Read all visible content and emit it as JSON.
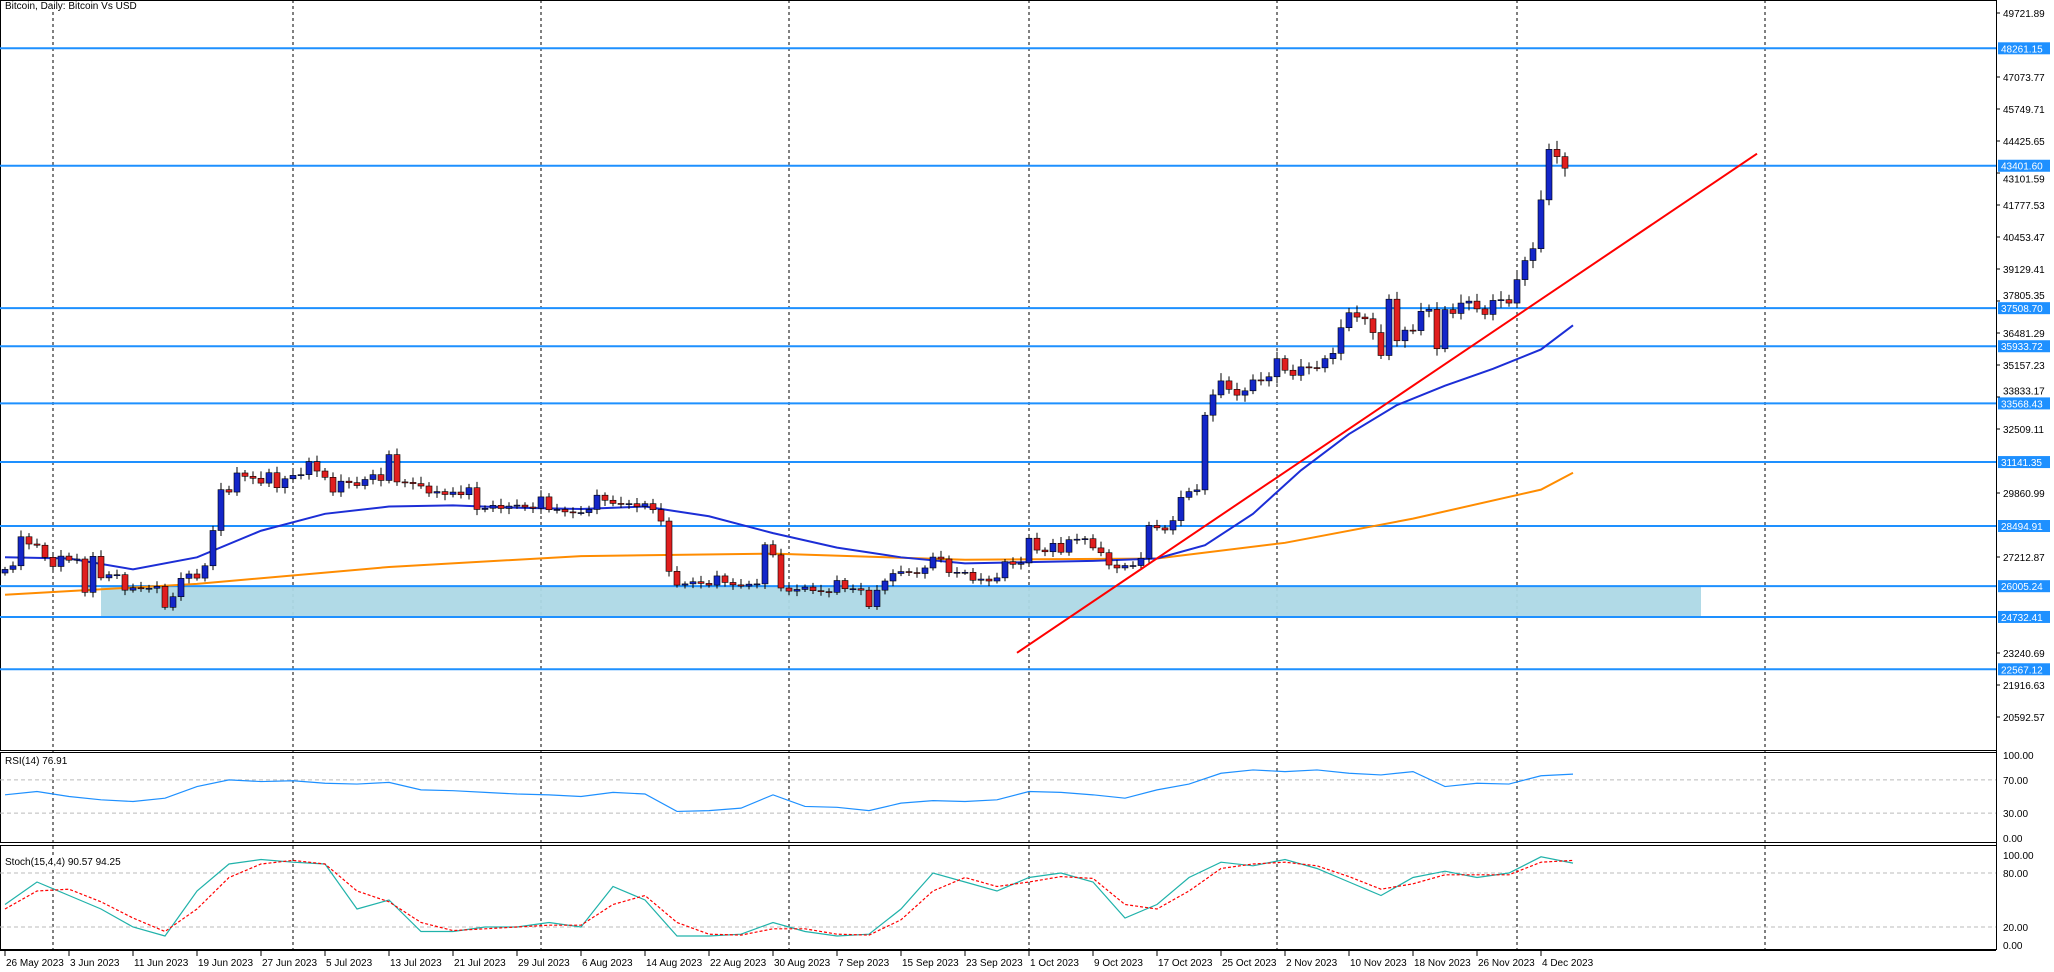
{
  "header": {
    "title": "Bitcoin, Daily:  Bitcoin Vs USD"
  },
  "rsi": {
    "title": "RSI(14) 76.91",
    "levels": [
      "100.00",
      "70.00",
      "30.00",
      "0.00"
    ]
  },
  "stoch": {
    "title": "Stoch(15,4,4) 90.57 94.25",
    "levels": [
      "100.00",
      "80.00",
      "20.00",
      "0.00"
    ]
  },
  "colors": {
    "bull": "#1326c9",
    "bear": "#e01e1e",
    "level": "#1e90ff",
    "zone": "#add8e6",
    "ma_fast": "#1c2ed6",
    "ma_slow": "#ff8c00",
    "trend": "#ff0000",
    "rsi": "#1e90ff",
    "stoch_main": "#20b2aa",
    "stoch_signal": "#ff0000"
  },
  "chart_data": {
    "type": "candlestick",
    "title": "Bitcoin, Daily:  Bitcoin Vs USD",
    "start_date": "2023-05-26",
    "ylim": [
      19900,
      50200
    ],
    "y_ticks": [
      "49721.89",
      "47073.77",
      "45749.71",
      "44425.65",
      "43101.59",
      "41777.53",
      "40453.47",
      "39129.41",
      "37805.35",
      "36481.29",
      "35157.23",
      "33833.17",
      "32509.11",
      "29860.99",
      "27212.87",
      "23240.69",
      "21916.63",
      "20592.57"
    ],
    "x_tick_labels": [
      "26 May 2023",
      "3 Jun 2023",
      "11 Jun 2023",
      "19 Jun 2023",
      "27 Jun 2023",
      "5 Jul 2023",
      "13 Jul 2023",
      "21 Jul 2023",
      "29 Jul 2023",
      "6 Aug 2023",
      "14 Aug 2023",
      "22 Aug 2023",
      "30 Aug 2023",
      "7 Sep 2023",
      "15 Sep 2023",
      "23 Sep 2023",
      "1 Oct 2023",
      "9 Oct 2023",
      "17 Oct 2023",
      "25 Oct 2023",
      "2 Nov 2023",
      "10 Nov 2023",
      "18 Nov 2023",
      "26 Nov 2023",
      "4 Dec 2023"
    ],
    "closes": [
      26700,
      26850,
      28050,
      27750,
      27700,
      27200,
      26820,
      27250,
      27080,
      27130,
      25750,
      27240,
      26350,
      26480,
      26480,
      25840,
      25940,
      25910,
      25920,
      26000,
      25130,
      25570,
      26330,
      26510,
      26340,
      26850,
      28310,
      30000,
      29900,
      30690,
      30550,
      30470,
      30270,
      30700,
      30080,
      30450,
      30590,
      30620,
      31160,
      30770,
      30510,
      29900,
      30350,
      30290,
      30170,
      30420,
      30620,
      30380,
      31450,
      30320,
      30300,
      30250,
      30150,
      29860,
      29920,
      29800,
      29900,
      29790,
      30080,
      29180,
      29230,
      29350,
      29220,
      29320,
      29360,
      29280,
      29230,
      29700,
      29170,
      29180,
      29080,
      29050,
      29050,
      29180,
      29770,
      29560,
      29430,
      29400,
      29420,
      29300,
      29420,
      29170,
      28700,
      26620,
      26050,
      26100,
      26190,
      26120,
      26050,
      26430,
      26160,
      26060,
      26010,
      26090,
      26100,
      27720,
      27300,
      25930,
      25800,
      25870,
      25970,
      25820,
      25780,
      25750,
      26240,
      25900,
      25900,
      25840,
      25160,
      25840,
      26220,
      26530,
      26610,
      26570,
      26530,
      26760,
      27210,
      27130,
      26570,
      26580,
      26580,
      26250,
      26300,
      26220,
      26350,
      27020,
      26910,
      26970,
      27990,
      27500,
      27430,
      27780,
      27410,
      27930,
      27950,
      27970,
      27590,
      27390,
      26880,
      26760,
      26860,
      26860,
      27160,
      28520,
      28420,
      28330,
      28720,
      29680,
      29920,
      29990,
      33080,
      33920,
      34500,
      34150,
      33910,
      34090,
      34540,
      34500,
      34670,
      35420,
      34940,
      34730,
      35080,
      35050,
      35040,
      35420,
      35640,
      36700,
      37320,
      37140,
      37070,
      36500,
      35550,
      37880,
      36160,
      36600,
      36580,
      37380,
      37460,
      35830,
      37450,
      37290,
      37720,
      37800,
      37480,
      37250,
      37830,
      37860,
      37720,
      38690,
      39480,
      39970,
      41990,
      44080,
      43780,
      43300
    ],
    "levels": [
      "48261.15",
      "43401.60",
      "37508.70",
      "35933.72",
      "33568.43",
      "31141.35",
      "28494.91",
      "26005.24",
      "24732.41",
      "22567.12"
    ],
    "zone": {
      "from_day": 12,
      "to_day": 212,
      "low": 24732.41,
      "high": 26005.24
    },
    "trendline": {
      "day1": 126.5,
      "price1": 23250,
      "day2": 219,
      "price2": 43900
    },
    "ma_fast": {
      "days": [
        0,
        8,
        16,
        24,
        32,
        40,
        48,
        56,
        64,
        72,
        80,
        88,
        96,
        104,
        112,
        120,
        128,
        136,
        144,
        150,
        156,
        162,
        168,
        174,
        180,
        186,
        192,
        196
      ],
      "values": [
        27200,
        27150,
        26700,
        27200,
        28300,
        29000,
        29300,
        29350,
        29250,
        29200,
        29300,
        28900,
        28200,
        27600,
        27200,
        26950,
        27000,
        27050,
        27150,
        27700,
        29000,
        30800,
        32300,
        33500,
        34300,
        35000,
        35800,
        36800
      ]
    },
    "ma_slow": {
      "days": [
        0,
        24,
        48,
        72,
        96,
        120,
        144,
        160,
        176,
        192,
        196
      ],
      "values": [
        25650,
        26100,
        26800,
        27250,
        27350,
        27100,
        27150,
        27800,
        28800,
        30000,
        30700
      ]
    },
    "rsi_values": [
      52,
      56,
      50,
      46,
      44,
      48,
      62,
      70,
      68,
      69,
      66,
      65,
      67,
      58,
      57,
      55,
      53,
      52,
      50,
      55,
      53,
      32,
      33,
      36,
      52,
      38,
      37,
      33,
      42,
      45,
      44,
      46,
      56,
      55,
      52,
      48,
      58,
      65,
      78,
      82,
      80,
      82,
      78,
      76,
      80,
      62,
      66,
      65,
      75,
      77
    ],
    "stoch_main": [
      45,
      70,
      55,
      40,
      20,
      10,
      60,
      90,
      95,
      92,
      90,
      40,
      50,
      15,
      15,
      20,
      20,
      25,
      20,
      65,
      50,
      10,
      10,
      12,
      25,
      15,
      10,
      12,
      40,
      80,
      70,
      60,
      75,
      80,
      70,
      30,
      45,
      75,
      92,
      88,
      95,
      85,
      70,
      55,
      75,
      82,
      75,
      80,
      98,
      91
    ],
    "stoch_signal": [
      40,
      60,
      62,
      48,
      30,
      15,
      40,
      75,
      90,
      94,
      90,
      60,
      48,
      25,
      16,
      18,
      20,
      22,
      22,
      45,
      55,
      25,
      12,
      11,
      18,
      18,
      12,
      11,
      28,
      60,
      75,
      65,
      70,
      76,
      74,
      45,
      40,
      60,
      85,
      90,
      92,
      88,
      76,
      62,
      68,
      78,
      78,
      78,
      92,
      94
    ]
  }
}
